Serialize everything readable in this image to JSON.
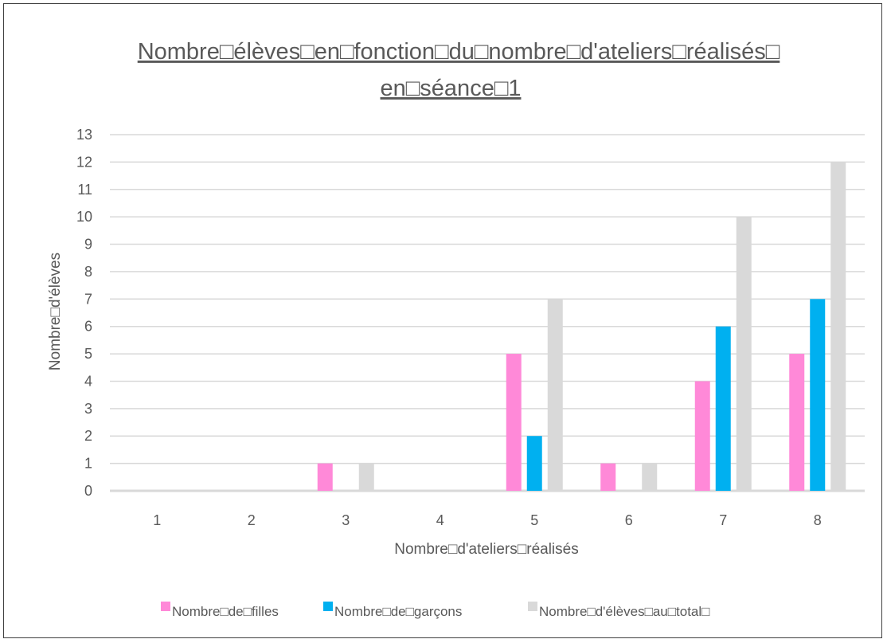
{
  "chart_data": {
    "type": "bar",
    "title_lines": [
      "Nombre□élèves□en□fonction□du□nombre□d'ateliers□réalisés□",
      "en□séance□1"
    ],
    "xlabel": "Nombre□d'ateliers□réalisés",
    "ylabel": "Nombre□d'élèves",
    "categories": [
      "1",
      "2",
      "3",
      "4",
      "5",
      "6",
      "7",
      "8"
    ],
    "ylim": [
      0,
      13
    ],
    "yticks": [
      "0",
      "1",
      "2",
      "3",
      "4",
      "5",
      "6",
      "7",
      "8",
      "9",
      "10",
      "11",
      "12",
      "13"
    ],
    "grid": true,
    "legend_position": "bottom",
    "series": [
      {
        "name": "Nombre□de□filles",
        "color": "#ff89d8",
        "values": [
          0,
          0,
          1,
          0,
          5,
          1,
          4,
          5
        ]
      },
      {
        "name": "Nombre□de□garçons",
        "color": "#00b0f0",
        "values": [
          0,
          0,
          0,
          0,
          2,
          0,
          6,
          7
        ]
      },
      {
        "name": "Nombre□d'élèves□au□total□",
        "color": "#d9d9d9",
        "values": [
          0,
          0,
          1,
          0,
          7,
          1,
          10,
          12
        ]
      }
    ]
  }
}
